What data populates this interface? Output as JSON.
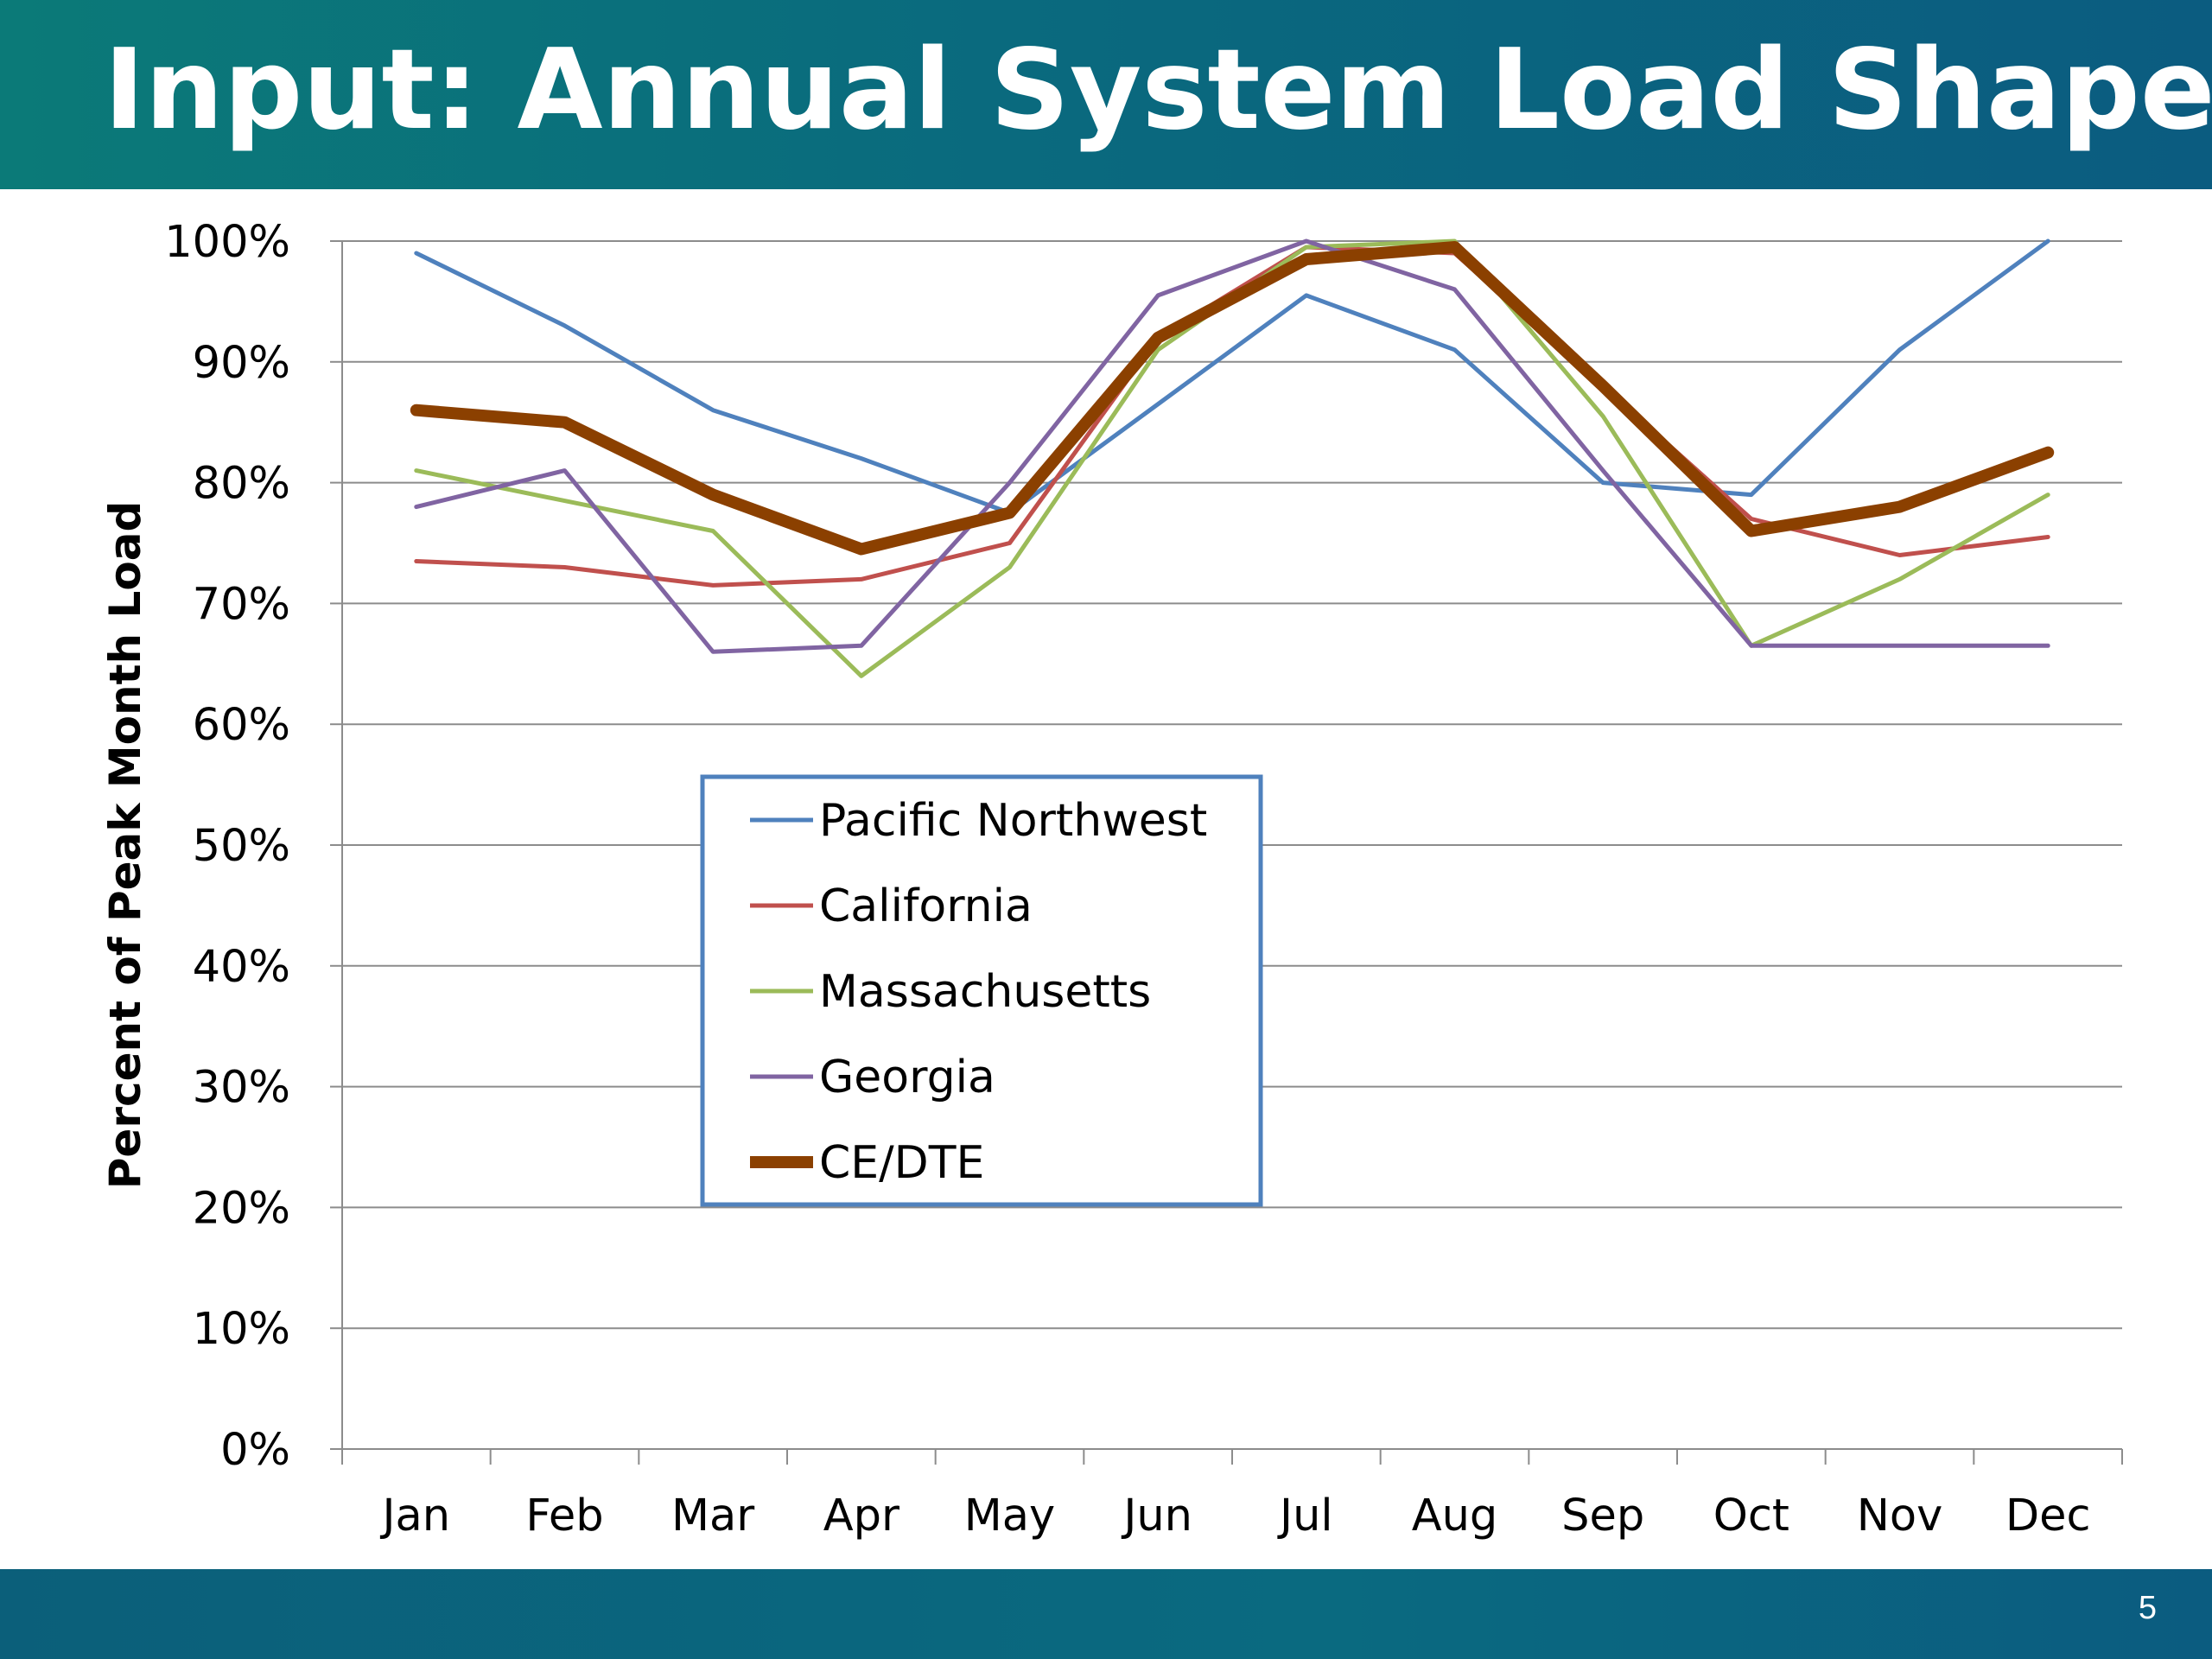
{
  "slide": {
    "title": "Input: Annual System Load Shapes",
    "page_number": "5"
  },
  "colors": {
    "header_bar": "#0b6a7e",
    "footer_bar": "#0b5f7a",
    "grid": "#8c8c8c"
  },
  "chart_data": {
    "type": "line",
    "title": "",
    "xlabel": "",
    "ylabel": "Percent of Peak Month Load",
    "categories": [
      "Jan",
      "Feb",
      "Mar",
      "Apr",
      "May",
      "Jun",
      "Jul",
      "Aug",
      "Sep",
      "Oct",
      "Nov",
      "Dec"
    ],
    "y_ticks": [
      "0%",
      "10%",
      "20%",
      "30%",
      "40%",
      "50%",
      "60%",
      "70%",
      "80%",
      "90%",
      "100%"
    ],
    "ylim": [
      0,
      100
    ],
    "grid": true,
    "legend_position": "center-left",
    "series": [
      {
        "name": "Pacific Northwest",
        "color": "#4f81bd",
        "values": [
          99,
          93,
          86,
          82,
          77.5,
          86.5,
          95.5,
          91,
          80,
          79,
          91,
          100
        ]
      },
      {
        "name": "California",
        "color": "#c0504d",
        "values": [
          73.5,
          73,
          71.5,
          72,
          75,
          92,
          99.5,
          99,
          88,
          77,
          74,
          75.5
        ]
      },
      {
        "name": "Massachusetts",
        "color": "#9bbb59",
        "values": [
          81,
          78.5,
          76,
          64,
          73,
          91,
          99.5,
          100,
          85.5,
          66.5,
          72,
          79
        ]
      },
      {
        "name": "Georgia",
        "color": "#8064a2",
        "values": [
          78,
          81,
          66,
          66.5,
          80,
          95.5,
          100,
          96,
          81,
          66.5,
          66.5,
          66.5
        ]
      },
      {
        "name": "CE/DTE",
        "color": "#8b4000",
        "values": [
          86,
          85,
          79,
          74.5,
          77.5,
          92,
          98.5,
          99.5,
          88,
          76,
          78,
          82.5
        ]
      }
    ]
  }
}
